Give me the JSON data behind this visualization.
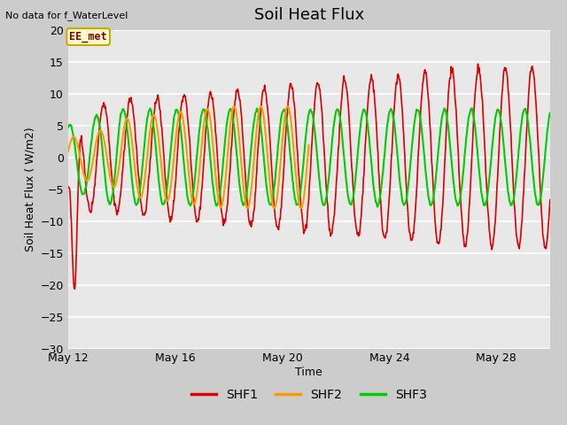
{
  "title": "Soil Heat Flux",
  "top_left_text": "No data for f_WaterLevel",
  "watermark": "EE_met",
  "xlabel": "Time",
  "ylabel": "Soil Heat Flux (W/m2)",
  "ylim": [
    -30,
    20
  ],
  "yticks": [
    -30,
    -25,
    -20,
    -15,
    -10,
    -5,
    0,
    5,
    10,
    15,
    20
  ],
  "xlim": [
    12,
    30
  ],
  "xtick_days": [
    12,
    16,
    20,
    24,
    28
  ],
  "xtick_labels": [
    "May 12",
    "May 16",
    "May 20",
    "May 24",
    "May 28"
  ],
  "fig_bg_color": "#cccccc",
  "plot_bg_color": "#e8e8e8",
  "shf1_color": "#dd0000",
  "shf2_color": "#ff9900",
  "shf3_color": "#00cc00",
  "title_fontsize": 13,
  "label_fontsize": 9,
  "tick_fontsize": 9,
  "legend_fontsize": 10
}
